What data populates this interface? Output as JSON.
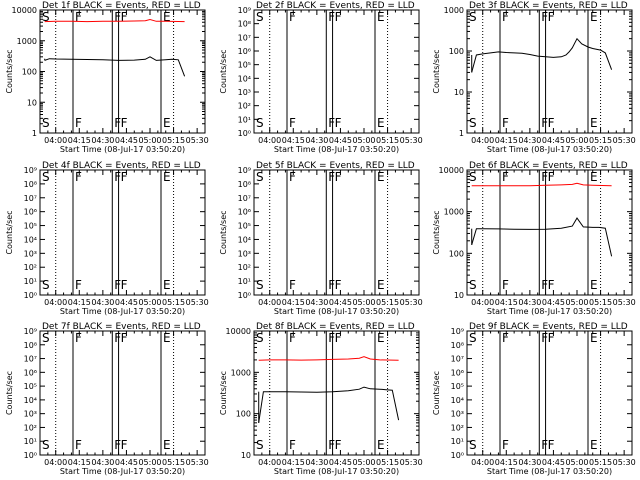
{
  "colors": {
    "events": "#000000",
    "lld": "#ff0000",
    "axis": "#000000",
    "background": "#ffffff"
  },
  "panels_common": {
    "xlabel": "Start Time (08-Jul-17 03:50:20)",
    "x_ticks": [
      "04:00",
      "04:15",
      "04:30",
      "04:45",
      "05:00",
      "05:15",
      "05:30"
    ],
    "x_tick_minutes": [
      10,
      25,
      40,
      55,
      70,
      85,
      100
    ],
    "x_range_minutes": [
      0,
      105
    ],
    "dotted_lines_minutes": [
      10,
      85
    ],
    "solid_lines_minutes": [
      21,
      46,
      50,
      77
    ],
    "markers": [
      {
        "label": "S",
        "minute": 0
      },
      {
        "label": "F",
        "minute": 21
      },
      {
        "label": "F",
        "minute": 46
      },
      {
        "label": "F",
        "minute": 50
      },
      {
        "label": "E",
        "minute": 77
      }
    ]
  },
  "chart_data": [
    {
      "type": "line",
      "title": "Det 1f BLACK = Events, RED = LLD",
      "ylabel": "Counts/sec",
      "yscale": "log",
      "ylim": [
        1,
        10000
      ],
      "y_ticks": [
        "1",
        "10",
        "100",
        "1000",
        "10000"
      ],
      "series": [
        {
          "name": "Events",
          "color": "#000000",
          "x": [
            3,
            6,
            10,
            20,
            30,
            40,
            50,
            60,
            67,
            70,
            74,
            80,
            84,
            88,
            92
          ],
          "y": [
            230,
            260,
            255,
            250,
            245,
            240,
            230,
            235,
            250,
            300,
            230,
            240,
            250,
            240,
            70
          ]
        },
        {
          "name": "LLD",
          "color": "#ff0000",
          "x": [
            3,
            10,
            20,
            30,
            40,
            50,
            60,
            67,
            70,
            74,
            80,
            92
          ],
          "y": [
            4200,
            4300,
            4300,
            4200,
            4300,
            4300,
            4400,
            4500,
            4900,
            4300,
            4300,
            4200
          ]
        }
      ]
    },
    {
      "type": "line",
      "title": "Det 2f BLACK = Events, RED = LLD",
      "ylabel": "Counts/sec",
      "yscale": "log",
      "ylim": [
        1,
        1000000000
      ],
      "y_ticks": [
        "10⁰",
        "10¹",
        "10²",
        "10³",
        "10⁴",
        "10⁵",
        "10⁶",
        "10⁷",
        "10⁸",
        "10⁹"
      ],
      "series": []
    },
    {
      "type": "line",
      "title": "Det 3f BLACK = Events, RED = LLD",
      "ylabel": "Counts/sec",
      "yscale": "log",
      "ylim": [
        1,
        1000
      ],
      "y_ticks": [
        "1",
        "10",
        "100",
        "1000"
      ],
      "series": [
        {
          "name": "Events",
          "color": "#000000",
          "x": [
            3,
            6,
            10,
            15,
            20,
            25,
            30,
            35,
            40,
            45,
            50,
            55,
            60,
            63,
            65,
            67,
            70,
            73,
            77,
            80,
            85,
            88,
            92
          ],
          "y": [
            30,
            80,
            85,
            90,
            95,
            92,
            90,
            88,
            82,
            75,
            72,
            70,
            72,
            80,
            95,
            120,
            200,
            150,
            125,
            115,
            105,
            90,
            35
          ]
        }
      ]
    },
    {
      "type": "line",
      "title": "Det 4f BLACK = Events, RED = LLD",
      "ylabel": "Counts/sec",
      "yscale": "log",
      "ylim": [
        1,
        1000000000
      ],
      "y_ticks": [
        "10⁰",
        "10¹",
        "10²",
        "10³",
        "10⁴",
        "10⁵",
        "10⁶",
        "10⁷",
        "10⁸",
        "10⁹"
      ],
      "series": []
    },
    {
      "type": "line",
      "title": "Det 5f BLACK = Events, RED = LLD",
      "ylabel": "Counts/sec",
      "yscale": "log",
      "ylim": [
        1,
        1000000000
      ],
      "y_ticks": [
        "10⁰",
        "10¹",
        "10²",
        "10³",
        "10⁴",
        "10⁵",
        "10⁶",
        "10⁷",
        "10⁸",
        "10⁹"
      ],
      "series": []
    },
    {
      "type": "line",
      "title": "Det 6f BLACK = Events, RED = LLD",
      "ylabel": "Counts/sec",
      "yscale": "log",
      "ylim": [
        10,
        10000
      ],
      "y_ticks": [
        "10",
        "100",
        "1000",
        "10000"
      ],
      "series": [
        {
          "name": "Events",
          "color": "#000000",
          "x": [
            3,
            6,
            10,
            20,
            30,
            40,
            50,
            60,
            67,
            70,
            74,
            80,
            84,
            88,
            92
          ],
          "y": [
            160,
            390,
            390,
            385,
            380,
            375,
            380,
            400,
            450,
            700,
            430,
            420,
            420,
            400,
            85
          ]
        },
        {
          "name": "LLD",
          "color": "#ff0000",
          "x": [
            3,
            10,
            20,
            30,
            40,
            50,
            60,
            67,
            70,
            74,
            80,
            92
          ],
          "y": [
            4200,
            4200,
            4200,
            4200,
            4200,
            4300,
            4400,
            4500,
            4800,
            4400,
            4300,
            4200
          ]
        }
      ]
    },
    {
      "type": "line",
      "title": "Det 7f BLACK = Events, RED = LLD",
      "ylabel": "Counts/sec",
      "yscale": "log",
      "ylim": [
        1,
        1000000000
      ],
      "y_ticks": [
        "10⁰",
        "10¹",
        "10²",
        "10³",
        "10⁴",
        "10⁵",
        "10⁶",
        "10⁷",
        "10⁸",
        "10⁹"
      ],
      "series": []
    },
    {
      "type": "line",
      "title": "Det 8f BLACK = Events, RED = LLD",
      "ylabel": "Counts/sec",
      "yscale": "log",
      "ylim": [
        10,
        10000
      ],
      "y_ticks": [
        "10",
        "100",
        "1000",
        "10000"
      ],
      "series": [
        {
          "name": "Events",
          "color": "#000000",
          "x": [
            3,
            6,
            10,
            20,
            30,
            40,
            50,
            60,
            67,
            70,
            74,
            80,
            84,
            88,
            92
          ],
          "y": [
            60,
            340,
            340,
            340,
            335,
            330,
            340,
            360,
            390,
            440,
            400,
            390,
            380,
            370,
            70
          ]
        },
        {
          "name": "LLD",
          "color": "#ff0000",
          "x": [
            3,
            10,
            20,
            30,
            40,
            50,
            60,
            67,
            70,
            74,
            80,
            92
          ],
          "y": [
            1950,
            2000,
            2000,
            1980,
            2000,
            2050,
            2100,
            2200,
            2400,
            2100,
            2000,
            1950
          ]
        }
      ]
    },
    {
      "type": "line",
      "title": "Det 9f BLACK = Events, RED = LLD",
      "ylabel": "Counts/sec",
      "yscale": "log",
      "ylim": [
        1,
        1000000000
      ],
      "y_ticks": [
        "10⁰",
        "10¹",
        "10²",
        "10³",
        "10⁴",
        "10⁵",
        "10⁶",
        "10⁷",
        "10⁸",
        "10⁹"
      ],
      "series": []
    }
  ]
}
